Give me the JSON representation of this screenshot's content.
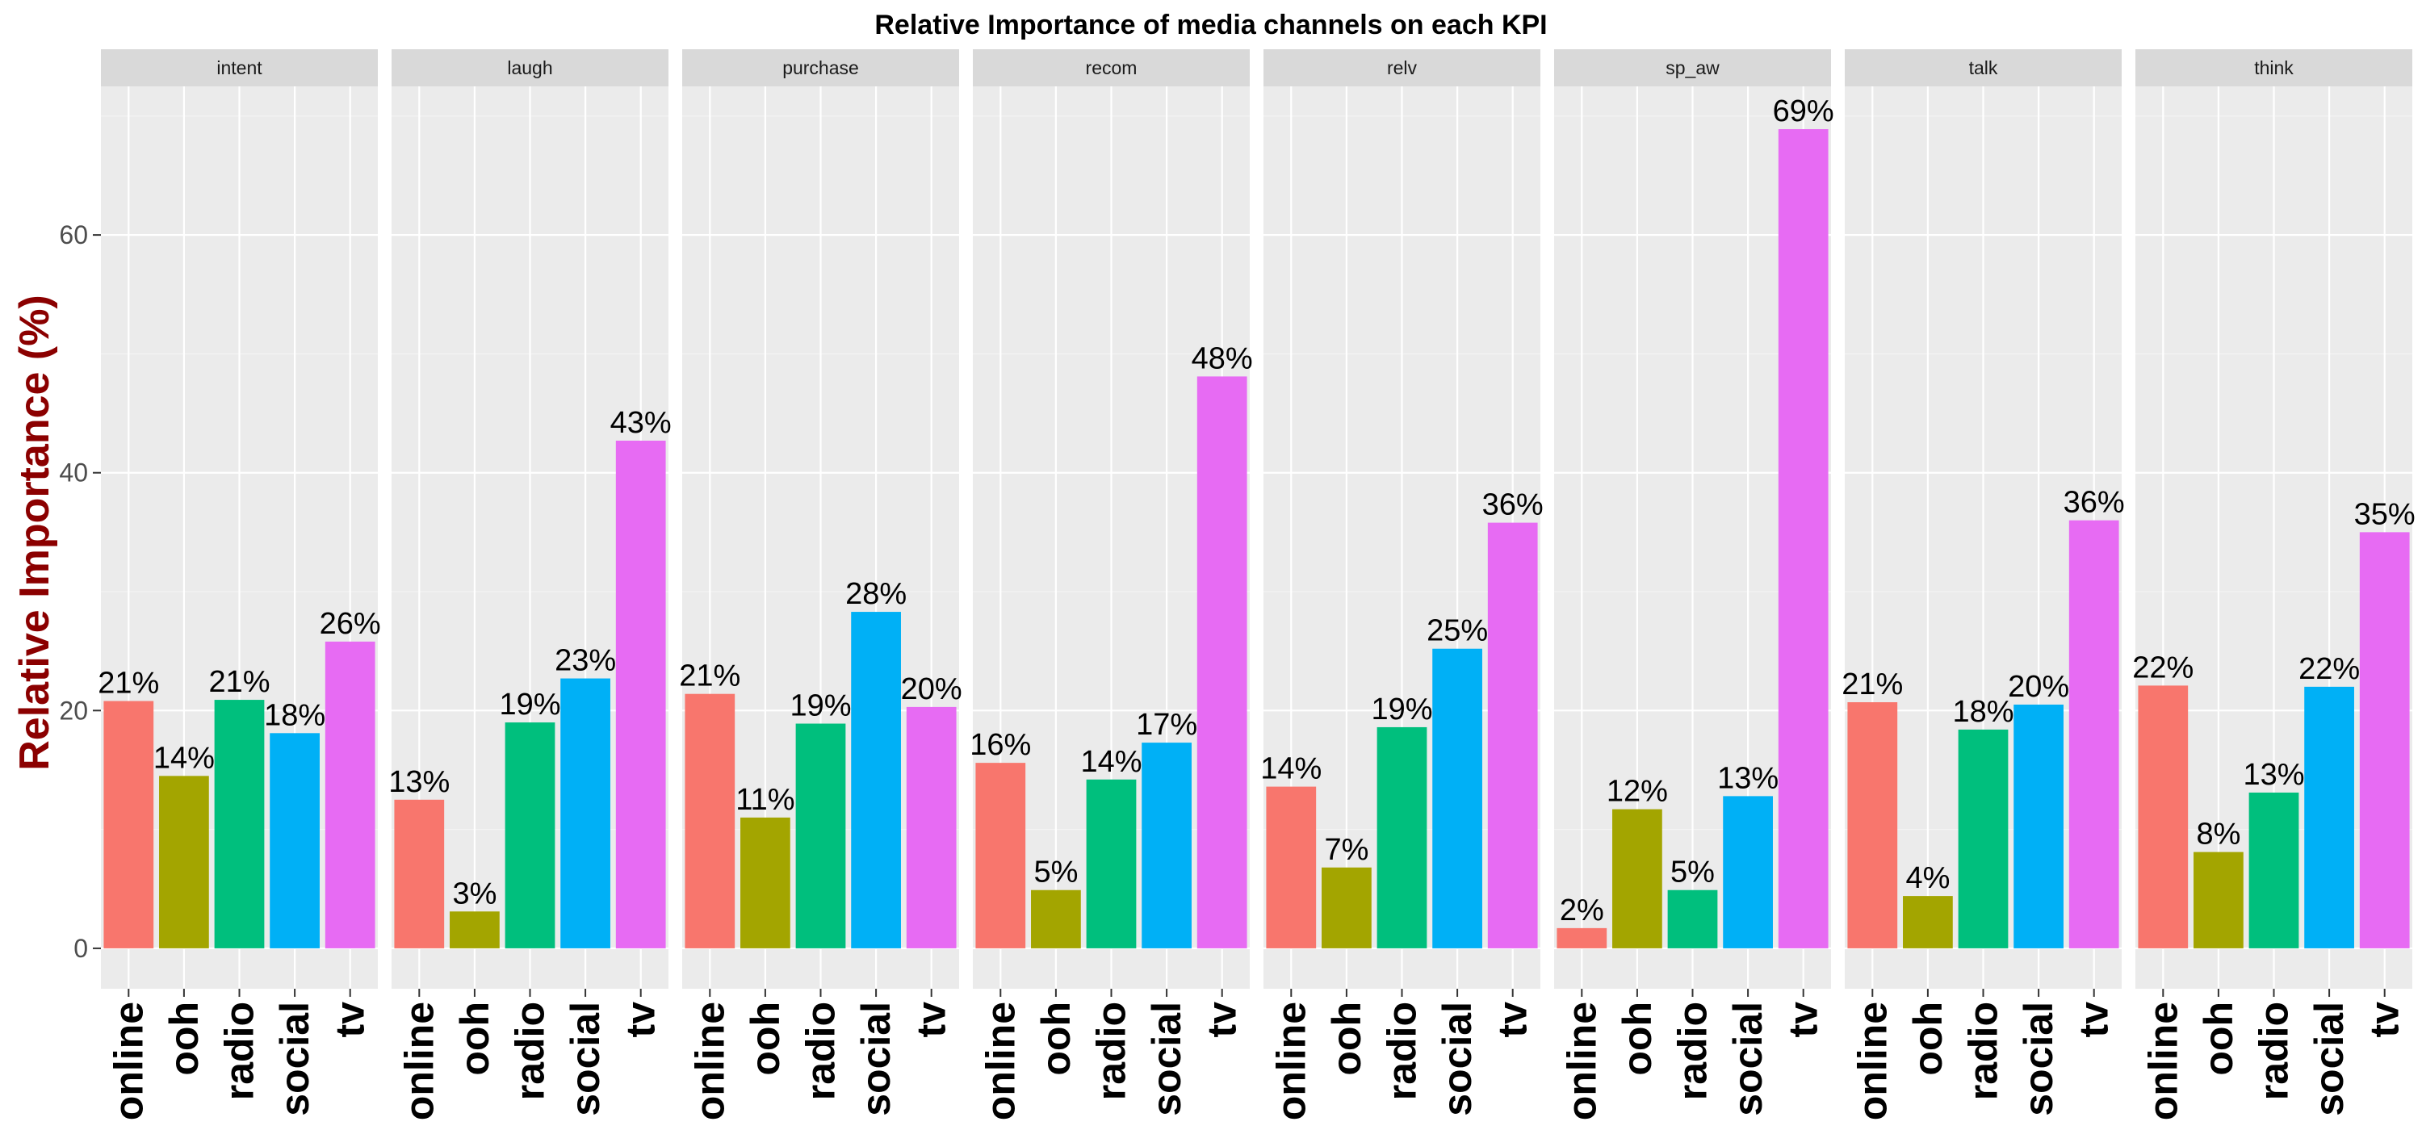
{
  "chart_data": {
    "type": "bar",
    "title": "Relative Importance of media channels on each KPI",
    "xlabel": "",
    "ylabel": "Relative Importance (%)",
    "ylim": [
      -3.4,
      72.5
    ],
    "yticks": [
      0,
      20,
      40,
      60
    ],
    "ytick_labels": [
      "0",
      "20",
      "40",
      "60"
    ],
    "grid": true,
    "legend": "none",
    "categories": [
      "online",
      "ooh",
      "radio",
      "social",
      "tv"
    ],
    "category_colors": [
      "#F8766D",
      "#A3A500",
      "#00BF7D",
      "#00B0F6",
      "#E76BF3"
    ],
    "panels": [
      {
        "name": "intent",
        "values": [
          20.8,
          14.5,
          20.9,
          18.1,
          25.8
        ],
        "labels": [
          "21%",
          "14%",
          "21%",
          "18%",
          "26%"
        ]
      },
      {
        "name": "laugh",
        "values": [
          12.5,
          3.1,
          19.0,
          22.7,
          42.7
        ],
        "labels": [
          "13%",
          "3%",
          "19%",
          "23%",
          "43%"
        ]
      },
      {
        "name": "purchase",
        "values": [
          21.4,
          11.0,
          18.9,
          28.3,
          20.3
        ],
        "labels": [
          "21%",
          "11%",
          "19%",
          "28%",
          "20%"
        ]
      },
      {
        "name": "recom",
        "values": [
          15.6,
          4.9,
          14.2,
          17.3,
          48.1
        ],
        "labels": [
          "16%",
          "5%",
          "14%",
          "17%",
          "48%"
        ]
      },
      {
        "name": "relv",
        "values": [
          13.6,
          6.8,
          18.6,
          25.2,
          35.8
        ],
        "labels": [
          "14%",
          "7%",
          "19%",
          "25%",
          "36%"
        ]
      },
      {
        "name": "sp_aw",
        "values": [
          1.7,
          11.7,
          4.9,
          12.8,
          68.9
        ],
        "labels": [
          "2%",
          "12%",
          "5%",
          "13%",
          "69%"
        ]
      },
      {
        "name": "talk",
        "values": [
          20.7,
          4.4,
          18.4,
          20.5,
          36.0
        ],
        "labels": [
          "21%",
          "4%",
          "18%",
          "20%",
          "36%"
        ]
      },
      {
        "name": "think",
        "values": [
          22.1,
          8.1,
          13.1,
          22.0,
          35.0
        ],
        "labels": [
          "22%",
          "8%",
          "13%",
          "22%",
          "35%"
        ]
      }
    ],
    "colors": {
      "panel_bg": "#EBEBEB",
      "strip_bg": "#D9D9D9",
      "grid_major": "#FFFFFF",
      "ylabel": "#8B0000",
      "tick": "#333333"
    }
  }
}
